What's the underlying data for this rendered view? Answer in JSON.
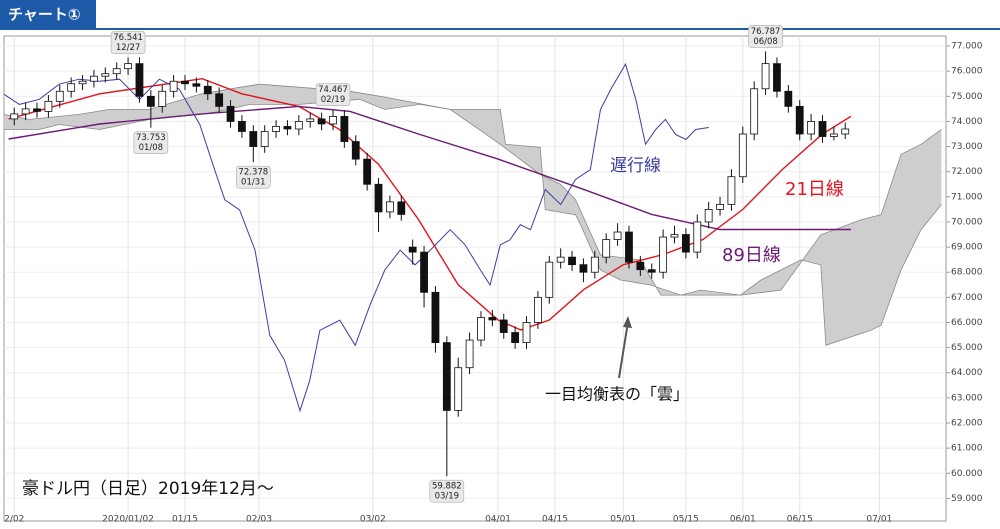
{
  "header": {
    "title": "チャート①"
  },
  "chart_data": {
    "type": "candlestick",
    "subtitle": "豪ドル円（日足）2019年12月～",
    "note": "一目均衡表の「雲」",
    "xlim": [
      -1.8,
      163.7
    ],
    "ylim": [
      58.1,
      77.4
    ],
    "grid": true,
    "xticks": [
      {
        "value": 0,
        "label": "2/02"
      },
      {
        "value": 20,
        "label": "2020/01/02"
      },
      {
        "value": 30,
        "label": "01/15"
      },
      {
        "value": 43,
        "label": "02/03"
      },
      {
        "value": 63,
        "label": "03/02"
      },
      {
        "value": 85,
        "label": "04/01"
      },
      {
        "value": 95,
        "label": "04/15"
      },
      {
        "value": 107,
        "label": "05/01"
      },
      {
        "value": 118,
        "label": "05/15"
      },
      {
        "value": 128,
        "label": "06/01"
      },
      {
        "value": 138,
        "label": "06/15"
      },
      {
        "value": 152,
        "label": "07/01"
      }
    ],
    "yticks": [
      {
        "value": 59,
        "label": "59.000"
      },
      {
        "value": 60,
        "label": "60.000"
      },
      {
        "value": 61,
        "label": "61.000"
      },
      {
        "value": 62,
        "label": "62.000"
      },
      {
        "value": 63,
        "label": "63.000"
      },
      {
        "value": 64,
        "label": "64.000"
      },
      {
        "value": 65,
        "label": "65.000"
      },
      {
        "value": 66,
        "label": "66.000"
      },
      {
        "value": 67,
        "label": "67.000"
      },
      {
        "value": 68,
        "label": "68.000"
      },
      {
        "value": 69,
        "label": "69.000"
      },
      {
        "value": 70,
        "label": "70.000"
      },
      {
        "value": 71,
        "label": "71.000"
      },
      {
        "value": 72,
        "label": "72.000"
      },
      {
        "value": 73,
        "label": "73.000"
      },
      {
        "value": 74,
        "label": "74.000"
      },
      {
        "value": 75,
        "label": "75.000"
      },
      {
        "value": 76,
        "label": "76.000"
      },
      {
        "value": 77,
        "label": "77.000"
      }
    ],
    "candles": {
      "up_color": "#ffffff",
      "down_color": "#111111",
      "x": [
        0,
        2,
        4,
        6,
        8,
        10,
        12,
        14,
        16,
        18,
        20,
        22,
        24,
        26,
        28,
        30,
        32,
        34,
        36,
        38,
        40,
        42,
        44,
        46,
        48,
        50,
        52,
        54,
        56,
        58,
        60,
        62,
        64,
        66,
        68,
        70,
        72,
        74,
        76,
        78,
        80,
        82,
        84,
        86,
        88,
        90,
        92,
        94,
        96,
        98,
        100,
        102,
        104,
        106,
        108,
        110,
        112,
        114,
        116,
        118,
        120,
        122,
        124,
        126,
        128,
        130,
        132,
        134,
        136,
        138,
        140,
        142,
        144,
        146
      ],
      "ohlc": [
        [
          74.1,
          74.55,
          73.85,
          74.3
        ],
        [
          74.3,
          74.75,
          74.05,
          74.5
        ],
        [
          74.5,
          74.75,
          74.15,
          74.4
        ],
        [
          74.4,
          75.05,
          74.15,
          74.8
        ],
        [
          74.8,
          75.45,
          74.55,
          75.2
        ],
        [
          75.2,
          75.75,
          74.95,
          75.5
        ],
        [
          75.5,
          75.85,
          75.25,
          75.6
        ],
        [
          75.6,
          76.05,
          75.35,
          75.8
        ],
        [
          75.8,
          76.15,
          75.55,
          75.9
        ],
        [
          75.9,
          76.35,
          75.65,
          76.1
        ],
        [
          76.1,
          76.541,
          75.85,
          76.3
        ],
        [
          76.3,
          76.55,
          74.75,
          75.0
        ],
        [
          75.0,
          75.25,
          73.753,
          74.6
        ],
        [
          74.6,
          75.45,
          74.35,
          75.2
        ],
        [
          75.2,
          75.85,
          74.95,
          75.6
        ],
        [
          75.6,
          75.85,
          75.25,
          75.5
        ],
        [
          75.5,
          75.75,
          75.15,
          75.4
        ],
        [
          75.4,
          75.65,
          74.85,
          75.1
        ],
        [
          75.1,
          75.35,
          74.35,
          74.6
        ],
        [
          74.6,
          74.85,
          73.75,
          74.0
        ],
        [
          74.0,
          74.25,
          73.35,
          73.6
        ],
        [
          73.6,
          73.85,
          72.378,
          73.0
        ],
        [
          73.0,
          73.85,
          72.75,
          73.6
        ],
        [
          73.6,
          74.05,
          73.35,
          73.8
        ],
        [
          73.8,
          74.05,
          73.45,
          73.7
        ],
        [
          73.7,
          74.25,
          73.45,
          74.0
        ],
        [
          74.0,
          74.35,
          73.75,
          74.1
        ],
        [
          74.1,
          74.35,
          73.65,
          73.9
        ],
        [
          73.9,
          74.467,
          73.65,
          74.2
        ],
        [
          74.2,
          74.45,
          72.95,
          73.2
        ],
        [
          73.2,
          73.45,
          72.25,
          72.5
        ],
        [
          72.5,
          72.75,
          71.25,
          71.5
        ],
        [
          71.5,
          71.75,
          69.6,
          70.4
        ],
        [
          70.4,
          71.05,
          70.15,
          70.8
        ],
        [
          70.8,
          71.05,
          70.05,
          70.3
        ],
        [
          69.0,
          69.3,
          68.3,
          68.8
        ],
        [
          68.8,
          69.05,
          66.6,
          67.2
        ],
        [
          67.2,
          67.45,
          64.8,
          65.2
        ],
        [
          65.2,
          65.45,
          59.882,
          62.5
        ],
        [
          62.5,
          64.6,
          62.25,
          64.2
        ],
        [
          64.2,
          65.6,
          63.95,
          65.3
        ],
        [
          65.3,
          66.45,
          65.05,
          66.2
        ],
        [
          66.2,
          66.5,
          65.85,
          66.1
        ],
        [
          66.1,
          66.35,
          65.35,
          65.6
        ],
        [
          65.6,
          65.85,
          64.95,
          65.2
        ],
        [
          65.2,
          66.25,
          64.95,
          66.0
        ],
        [
          66.0,
          67.25,
          65.75,
          67.0
        ],
        [
          67.0,
          68.65,
          66.75,
          68.4
        ],
        [
          68.4,
          68.95,
          68.15,
          68.6
        ],
        [
          68.6,
          68.85,
          68.05,
          68.3
        ],
        [
          68.3,
          68.55,
          67.6,
          68.0
        ],
        [
          68.0,
          68.85,
          67.75,
          68.6
        ],
        [
          68.6,
          69.55,
          68.35,
          69.3
        ],
        [
          69.3,
          69.95,
          69.05,
          69.6
        ],
        [
          69.6,
          69.85,
          68.15,
          68.4
        ],
        [
          68.4,
          68.65,
          67.85,
          68.1
        ],
        [
          68.1,
          68.35,
          67.75,
          68.0
        ],
        [
          68.0,
          69.7,
          67.75,
          69.4
        ],
        [
          69.4,
          69.85,
          69.15,
          69.5
        ],
        [
          69.5,
          69.75,
          68.55,
          68.8
        ],
        [
          68.8,
          70.3,
          68.55,
          70.0
        ],
        [
          70.0,
          70.8,
          69.75,
          70.5
        ],
        [
          70.5,
          71.0,
          70.25,
          70.7
        ],
        [
          70.7,
          72.1,
          70.45,
          71.8
        ],
        [
          71.8,
          73.8,
          71.55,
          73.5
        ],
        [
          73.5,
          75.6,
          73.25,
          75.3
        ],
        [
          75.3,
          76.787,
          75.05,
          76.3
        ],
        [
          76.3,
          76.55,
          74.95,
          75.2
        ],
        [
          75.2,
          75.45,
          74.35,
          74.6
        ],
        [
          74.6,
          74.85,
          73.25,
          73.5
        ],
        [
          73.5,
          74.3,
          73.25,
          74.0
        ],
        [
          74.0,
          74.25,
          73.15,
          73.4
        ],
        [
          73.4,
          73.8,
          73.25,
          73.5
        ],
        [
          73.5,
          73.95,
          73.3,
          73.7
        ]
      ]
    },
    "series": [
      {
        "name": "21日線",
        "color": "#e3141c",
        "x": [
          -1,
          15,
          33,
          40,
          50,
          57,
          64,
          71,
          78,
          85,
          89,
          94,
          100,
          107,
          114,
          121,
          128,
          135,
          142,
          147
        ],
        "values": [
          74.1,
          75.1,
          75.7,
          75.1,
          74.6,
          73.7,
          72.3,
          70.1,
          67.5,
          66.1,
          65.7,
          66.1,
          67.3,
          68.3,
          68.7,
          69.3,
          70.5,
          72.1,
          73.5,
          74.2
        ]
      },
      {
        "name": "89日線",
        "color": "#6d1a74",
        "x": [
          -1,
          15,
          33,
          50,
          59,
          71,
          85,
          100,
          112,
          124,
          147
        ],
        "values": [
          73.3,
          73.9,
          74.3,
          74.6,
          74.4,
          73.5,
          72.5,
          71.3,
          70.3,
          69.7,
          69.7
        ]
      },
      {
        "name": "遅行線",
        "color": "#3b3ea3",
        "x": [
          -1.8,
          0.9,
          4.4,
          7.9,
          11.4,
          15,
          18.5,
          22,
          25.5,
          29,
          32.6,
          35.2,
          37,
          39.6,
          42.3,
          44.9,
          47.5,
          50.2,
          51.9,
          53.7,
          57.2,
          59.9,
          62.5,
          65.1,
          67.8,
          70.4,
          73.1,
          76.6,
          79.2,
          81.9,
          83.6,
          85.4,
          87.1,
          88.9,
          90.7,
          93.3,
          96,
          98.6,
          101.2,
          103,
          104.8,
          107.4,
          109.2,
          110.9,
          112.7,
          114.4,
          116.2,
          118,
          119.7,
          122
        ],
        "values": [
          75.08,
          74.68,
          74.88,
          75.48,
          75.68,
          75.6,
          75.68,
          74.88,
          75.68,
          75.28,
          73.88,
          72.08,
          70.88,
          70.48,
          68.88,
          65.49,
          64.49,
          62.49,
          63.69,
          65.69,
          66.09,
          65.09,
          66.69,
          68.09,
          68.88,
          68.29,
          68.88,
          69.69,
          69.09,
          68.09,
          67.49,
          69.09,
          69.29,
          69.89,
          69.69,
          71.29,
          70.69,
          71.69,
          72.08,
          74.48,
          75.28,
          76.28,
          74.88,
          73.09,
          73.68,
          74.08,
          73.48,
          73.28,
          73.68,
          73.76
        ]
      }
    ],
    "cloud": {
      "color": "#c9c9c9",
      "upper": {
        "x": [
          -1.8,
          2.6,
          6.2,
          11.4,
          16.7,
          23.8,
          32.6,
          39.6,
          43.1,
          50.2,
          59,
          64.3,
          76.6,
          85.4,
          86.3,
          92.4,
          93.3,
          98.6,
          99.5,
          103,
          106.5,
          111.8,
          117.1,
          120.6,
          127.6,
          134.7,
          141.7,
          148.8,
          152.3,
          155.8,
          159.3,
          162.9
        ],
        "values": [
          74.28,
          74.08,
          74.16,
          74.28,
          74.48,
          74.48,
          75.08,
          75.36,
          75.48,
          75.36,
          75.2,
          75.0,
          74.48,
          74.48,
          73.09,
          72.97,
          70.49,
          70.29,
          69.89,
          68.09,
          67.69,
          67.49,
          67.09,
          67.29,
          67.09,
          67.29,
          69.49,
          70.09,
          70.29,
          72.69,
          73.09,
          73.68
        ]
      },
      "lower": {
        "x": [
          -1.8,
          4.4,
          7.9,
          15,
          23.8,
          32.6,
          36.1,
          41.4,
          50.2,
          60.7,
          65.1,
          71.3,
          76.6,
          85.4,
          92.4,
          96,
          98.6,
          103,
          110,
          113.6,
          124.1,
          127.6,
          131.2,
          138.2,
          141.7,
          142.6,
          145.2,
          150.5,
          152.3,
          155.8,
          159.3,
          162.9
        ],
        "values": [
          73.68,
          73.68,
          73.88,
          73.68,
          74.08,
          74.28,
          74.4,
          74.68,
          74.68,
          74.88,
          74.48,
          74.68,
          74.48,
          73.09,
          71.89,
          71.49,
          70.89,
          68.69,
          68.49,
          67.09,
          67.09,
          67.09,
          67.69,
          68.49,
          68.29,
          65.09,
          65.29,
          65.69,
          65.89,
          68.09,
          69.69,
          70.69
        ]
      }
    },
    "extremes": [
      {
        "x": 20,
        "value": 76.541,
        "label": "12/27"
      },
      {
        "x": 24,
        "value": 73.753,
        "label": "01/08"
      },
      {
        "x": 42,
        "value": 72.378,
        "label": "01/31"
      },
      {
        "x": 56,
        "value": 74.467,
        "label": "02/19"
      },
      {
        "x": 76,
        "value": 59.882,
        "label": "03/19"
      },
      {
        "x": 132,
        "value": 76.787,
        "label": "06/08"
      }
    ]
  }
}
